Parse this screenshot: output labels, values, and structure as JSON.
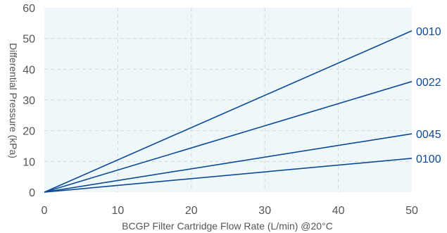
{
  "chart_data": {
    "type": "line",
    "xlabel": "BCGP Filter Cartridge Flow Rate (L/min) @20°C",
    "ylabel": "Differential Pressure (kPa)",
    "xlim": [
      0,
      50
    ],
    "ylim": [
      0,
      60
    ],
    "xticks": [
      "0",
      "10",
      "20",
      "30",
      "40",
      "50"
    ],
    "yticks": [
      "0",
      "10",
      "20",
      "30",
      "40",
      "50",
      "60"
    ],
    "grid": true,
    "series": [
      {
        "name": "0010",
        "x": [
          0,
          50
        ],
        "y": [
          0,
          52.5
        ]
      },
      {
        "name": "0022",
        "x": [
          0,
          50
        ],
        "y": [
          0,
          36
        ]
      },
      {
        "name": "0045",
        "x": [
          0,
          50
        ],
        "y": [
          0,
          19
        ]
      },
      {
        "name": "0100",
        "x": [
          0,
          50
        ],
        "y": [
          0,
          11
        ]
      }
    ],
    "colors": {
      "plot_background": "#eef7fa",
      "grid": "#cfd9dd",
      "line": "#0d4a96",
      "label": "#0d4a96",
      "text": "#555555"
    }
  }
}
